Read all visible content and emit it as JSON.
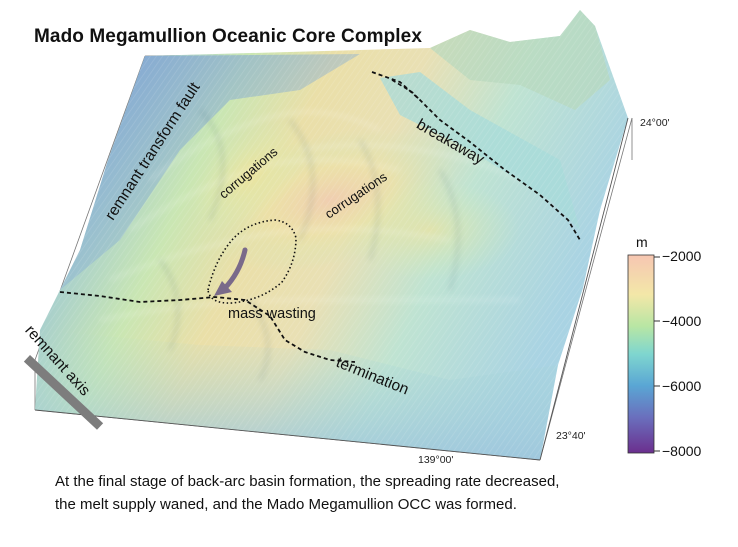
{
  "title": "Mado Megamullion Oceanic Core Complex",
  "caption": [
    "At the final stage of back-arc basin formation, the spreading rate decreased,",
    "the melt supply waned, and the Mado Megamullion OCC was formed."
  ],
  "labels": {
    "remnant_transform_fault": "remnant transform fault",
    "breakaway": "breakaway",
    "corrugations_1": "corrugations",
    "corrugations_2": "corrugations",
    "mass_wasting": "mass wasting",
    "termination": "termination",
    "remnant_axis": "remnant axis"
  },
  "coordinates": {
    "lat_top": "24°00'",
    "lat_bottom": "23°40'",
    "lon_bottom": "139°00'"
  },
  "colorbar": {
    "unit": "m",
    "ticks": [
      "−2000",
      "−4000",
      "−6000",
      "−8000"
    ],
    "depth_range": [
      -8000,
      -2000
    ],
    "colors": [
      "#f6c6b2",
      "#f3e7a8",
      "#b8e6a4",
      "#7fd6cf",
      "#5aa6d4",
      "#6a6fbd",
      "#6b2f8e"
    ]
  }
}
